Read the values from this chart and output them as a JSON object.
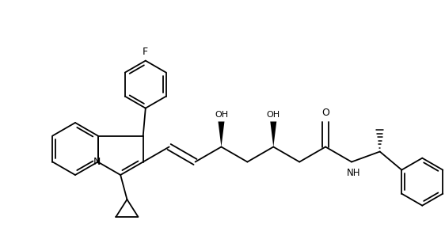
{
  "bg_color": "#ffffff",
  "line_color": "#000000",
  "lw": 1.3,
  "figsize": [
    5.62,
    2.88
  ],
  "dpi": 100,
  "xlim": [
    0,
    562
  ],
  "ylim": [
    0,
    288
  ]
}
